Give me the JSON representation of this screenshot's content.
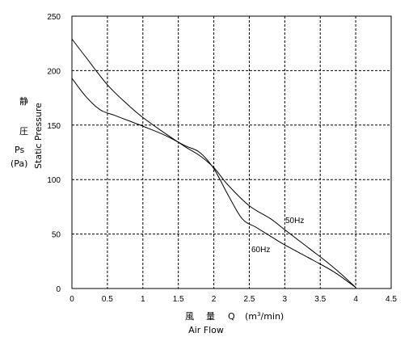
{
  "chart_data": {
    "type": "line",
    "xlim": [
      0,
      4.5
    ],
    "ylim": [
      0,
      250
    ],
    "x_ticks": [
      "0",
      "0.5",
      "1",
      "1.5",
      "2",
      "2.5",
      "3",
      "3.5",
      "4",
      "4.5"
    ],
    "y_ticks": [
      "0",
      "50",
      "100",
      "150",
      "200",
      "250"
    ],
    "grid": true,
    "y_axis_label": {
      "jp_top": "静",
      "jp_mid": "圧",
      "symbol": "Ps",
      "unit": "(Pa)",
      "en": "Static Pressure"
    },
    "x_axis_label": {
      "jp1": "風",
      "jp2": "量",
      "symbol": "Q",
      "unit_pre": "(m",
      "unit_sup": "3",
      "unit_post": "/min)",
      "en": "Air Flow"
    },
    "series": [
      {
        "name": "50Hz",
        "color": "#000000",
        "points": [
          [
            0,
            229
          ],
          [
            0.2,
            212
          ],
          [
            0.5,
            187
          ],
          [
            0.8,
            168
          ],
          [
            1.0,
            157
          ],
          [
            1.3,
            143
          ],
          [
            1.6,
            130
          ],
          [
            1.8,
            122
          ],
          [
            2.0,
            111
          ],
          [
            2.2,
            95
          ],
          [
            2.5,
            76
          ],
          [
            2.8,
            64
          ],
          [
            3.0,
            54
          ],
          [
            3.3,
            39
          ],
          [
            3.6,
            24
          ],
          [
            3.8,
            13
          ],
          [
            4.0,
            1
          ]
        ]
      },
      {
        "name": "60Hz",
        "color": "#000000",
        "points": [
          [
            0,
            193
          ],
          [
            0.2,
            176
          ],
          [
            0.4,
            164
          ],
          [
            0.6,
            159
          ],
          [
            0.8,
            154
          ],
          [
            1.0,
            149
          ],
          [
            1.3,
            141
          ],
          [
            1.6,
            131
          ],
          [
            1.8,
            125
          ],
          [
            2.0,
            110
          ],
          [
            2.2,
            86
          ],
          [
            2.4,
            64
          ],
          [
            2.6,
            56
          ],
          [
            2.8,
            48
          ],
          [
            3.0,
            40
          ],
          [
            3.4,
            26
          ],
          [
            3.7,
            15
          ],
          [
            4.0,
            1
          ]
        ]
      }
    ]
  }
}
